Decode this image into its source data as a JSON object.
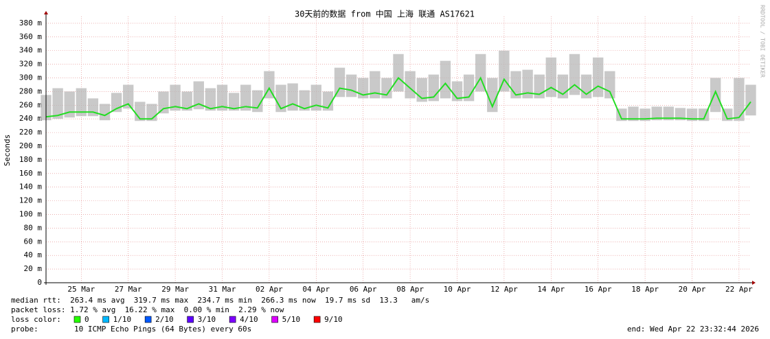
{
  "chart_data": {
    "type": "smoke",
    "title": "30天前的数据 from  中国 上海 联通 AS17621",
    "y_label": "Seconds",
    "watermark": "RRDTOOL / TOBI OETIKER",
    "xlim": [
      0,
      30
    ],
    "xticks": [
      {
        "value": 1.5,
        "label": "25 Mar"
      },
      {
        "value": 3.5,
        "label": "27 Mar"
      },
      {
        "value": 5.5,
        "label": "29 Mar"
      },
      {
        "value": 7.5,
        "label": "31 Mar"
      },
      {
        "value": 9.5,
        "label": "02 Apr"
      },
      {
        "value": 11.5,
        "label": "04 Apr"
      },
      {
        "value": 13.5,
        "label": "06 Apr"
      },
      {
        "value": 15.5,
        "label": "08 Apr"
      },
      {
        "value": 17.5,
        "label": "10 Apr"
      },
      {
        "value": 19.5,
        "label": "12 Apr"
      },
      {
        "value": 21.5,
        "label": "14 Apr"
      },
      {
        "value": 23.5,
        "label": "16 Apr"
      },
      {
        "value": 25.5,
        "label": "18 Apr"
      },
      {
        "value": 27.5,
        "label": "20 Apr"
      },
      {
        "value": 29.5,
        "label": "22 Apr"
      }
    ],
    "ylim": [
      0,
      390
    ],
    "yticks": [
      0,
      {
        "value": 20,
        "label": "20 m"
      },
      {
        "value": 40,
        "label": "40 m"
      },
      {
        "value": 60,
        "label": "60 m"
      },
      {
        "value": 80,
        "label": "80 m"
      },
      {
        "value": 100,
        "label": "100 m"
      },
      {
        "value": 120,
        "label": "120 m"
      },
      {
        "value": 140,
        "label": "140 m"
      },
      {
        "value": 160,
        "label": "160 m"
      },
      {
        "value": 180,
        "label": "180 m"
      },
      {
        "value": 200,
        "label": "200 m"
      },
      {
        "value": 220,
        "label": "220 m"
      },
      {
        "value": 240,
        "label": "240 m"
      },
      {
        "value": 260,
        "label": "260 m"
      },
      {
        "value": 280,
        "label": "280 m"
      },
      {
        "value": 300,
        "label": "300 m"
      },
      {
        "value": 320,
        "label": "320 m"
      },
      {
        "value": 340,
        "label": "340 m"
      },
      {
        "value": 360,
        "label": "360 m"
      },
      {
        "value": 380,
        "label": "380 m"
      }
    ],
    "grid": true,
    "x": [
      0,
      0.5,
      1,
      1.5,
      2,
      2.5,
      3,
      3.5,
      4,
      4.5,
      5,
      5.5,
      6,
      6.5,
      7,
      7.5,
      8,
      8.5,
      9,
      9.5,
      10,
      10.5,
      11,
      11.5,
      12,
      12.5,
      13,
      13.5,
      14,
      14.5,
      15,
      15.5,
      16,
      16.5,
      17,
      17.5,
      18,
      18.5,
      19,
      19.5,
      20,
      20.5,
      21,
      21.5,
      22,
      22.5,
      23,
      23.5,
      24,
      24.5,
      25,
      25.5,
      26,
      26.5,
      27,
      27.5,
      28,
      28.5,
      29,
      29.5,
      30
    ],
    "band": {
      "color": "#b8b8b8",
      "low": [
        238,
        240,
        242,
        244,
        244,
        238,
        250,
        255,
        237,
        237,
        248,
        252,
        252,
        254,
        252,
        252,
        252,
        252,
        250,
        270,
        250,
        252,
        252,
        252,
        252,
        272,
        272,
        270,
        270,
        270,
        280,
        270,
        265,
        266,
        270,
        266,
        266,
        280,
        250,
        280,
        270,
        270,
        270,
        272,
        270,
        275,
        270,
        272,
        270,
        237,
        237,
        237,
        238,
        238,
        238,
        237,
        237,
        250,
        237,
        237,
        245
      ],
      "high": [
        275,
        285,
        280,
        285,
        270,
        262,
        278,
        290,
        265,
        262,
        280,
        290,
        280,
        295,
        285,
        290,
        278,
        290,
        282,
        310,
        290,
        292,
        282,
        290,
        280,
        315,
        305,
        300,
        310,
        300,
        335,
        310,
        300,
        305,
        325,
        295,
        305,
        335,
        300,
        340,
        310,
        312,
        305,
        330,
        305,
        335,
        305,
        330,
        310,
        255,
        258,
        255,
        258,
        258,
        256,
        255,
        255,
        300,
        255,
        300,
        290
      ]
    },
    "series": [
      {
        "color": "#22dd22",
        "values": [
          243,
          245,
          250,
          250,
          250,
          245,
          255,
          262,
          240,
          240,
          255,
          258,
          255,
          262,
          255,
          258,
          255,
          258,
          256,
          285,
          255,
          262,
          255,
          260,
          256,
          285,
          282,
          275,
          278,
          275,
          300,
          285,
          270,
          272,
          292,
          270,
          272,
          300,
          258,
          298,
          275,
          278,
          276,
          286,
          276,
          290,
          276,
          288,
          280,
          240,
          240,
          240,
          241,
          241,
          241,
          240,
          240,
          280,
          240,
          242,
          265
        ]
      }
    ],
    "stats": [
      "median rtt:  263.4 ms avg  319.7 ms max  234.7 ms min  266.3 ms now  19.7 ms sd  13.3   am/s",
      "packet loss: 1.72 % avg  16.22 % max  0.00 % min  2.29 % now"
    ],
    "loss_label": "loss color:",
    "loss_colors": [
      {
        "color": "#26ff00",
        "label": "0"
      },
      {
        "color": "#00b8ff",
        "label": "1/10"
      },
      {
        "color": "#0059ff",
        "label": "2/10"
      },
      {
        "color": "#5e00ff",
        "label": "3/10"
      },
      {
        "color": "#7e00ff",
        "label": "4/10"
      },
      {
        "color": "#dd00ff",
        "label": "5/10"
      },
      {
        "color": "#ff0000",
        "label": "9/10"
      }
    ],
    "probe_label": "probe:",
    "probe": "10 ICMP Echo Pings (64 Bytes) every 60s",
    "end": "end: Wed Apr 22 23:32:44 2026"
  }
}
